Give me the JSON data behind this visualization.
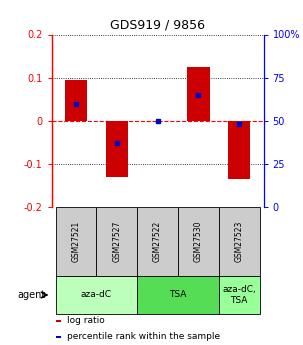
{
  "title": "GDS919 / 9856",
  "samples": [
    "GSM27521",
    "GSM27527",
    "GSM27522",
    "GSM27530",
    "GSM27523"
  ],
  "log_ratios": [
    0.095,
    -0.13,
    0.0,
    0.125,
    -0.135
  ],
  "percentile_ranks": [
    0.6,
    0.37,
    0.5,
    0.65,
    0.48
  ],
  "bar_color": "#cc0000",
  "blue_color": "#0000cc",
  "ylim": [
    -0.2,
    0.2
  ],
  "yticks_left": [
    -0.2,
    -0.1,
    0.0,
    0.1,
    0.2
  ],
  "yticks_right_pct": [
    0,
    25,
    50,
    75,
    100
  ],
  "groups": [
    {
      "label": "aza-dC",
      "cols": [
        0,
        1
      ],
      "color": "#bbffbb"
    },
    {
      "label": "TSA",
      "cols": [
        2,
        3
      ],
      "color": "#55dd55"
    },
    {
      "label": "aza-dC,\nTSA",
      "cols": [
        4
      ],
      "color": "#99ff99"
    }
  ],
  "sample_cell_color": "#cccccc",
  "bar_width": 0.55,
  "agent_label": "agent",
  "legend_red": "log ratio",
  "legend_blue": "percentile rank within the sample",
  "bg_color": "#ffffff",
  "n_samples": 5
}
